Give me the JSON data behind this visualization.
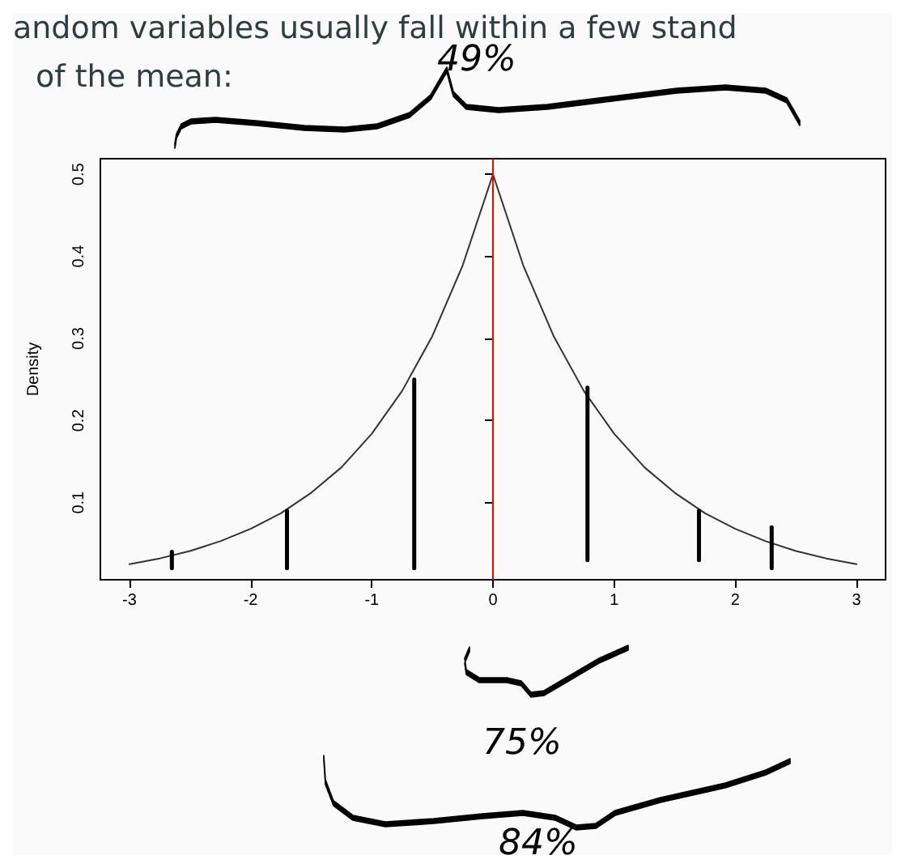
{
  "chart_data": {
    "type": "line",
    "title": "andom variables usually fall within a few stand",
    "subtitle": "of the mean:",
    "ylabel": "Density",
    "xlim": [
      -3.24,
      3.24
    ],
    "xticks": [
      -3,
      -2,
      -1,
      0,
      1,
      2,
      3
    ],
    "ylim": [
      0.006,
      0.519
    ],
    "yticks": [
      0.1,
      0.2,
      0.3,
      0.4,
      0.5
    ],
    "grid": false,
    "marker": "none",
    "line_style": "solid",
    "series": [
      {
        "color": "#333333",
        "x": [
          -3,
          -2.75,
          -2.5,
          -2.25,
          -2,
          -1.75,
          -1.5,
          -1.25,
          -1,
          -0.75,
          -0.5,
          -0.25,
          0,
          0.25,
          0.5,
          0.75,
          1,
          1.25,
          1.5,
          1.75,
          2,
          2.25,
          2.5,
          2.75,
          3
        ],
        "values": [
          0.025,
          0.032,
          0.041,
          0.053,
          0.068,
          0.087,
          0.112,
          0.143,
          0.184,
          0.236,
          0.303,
          0.389,
          0.5,
          0.389,
          0.303,
          0.236,
          0.184,
          0.143,
          0.112,
          0.087,
          0.068,
          0.053,
          0.041,
          0.032,
          0.025
        ]
      },
      {
        "color": "#000000",
        "x": [
          -2.65,
          -2.65
        ],
        "values": [
          0.02,
          0.04
        ]
      },
      {
        "color": "#000000",
        "x": [
          -1.7,
          -1.7
        ],
        "values": [
          0.02,
          0.09
        ]
      },
      {
        "color": "#000000",
        "x": [
          -0.65,
          -0.65
        ],
        "values": [
          0.02,
          0.25
        ]
      },
      {
        "color": "#000000",
        "x": [
          0.78,
          0.78
        ],
        "values": [
          0.03,
          0.24
        ]
      },
      {
        "color": "#000000",
        "x": [
          1.7,
          1.7
        ],
        "values": [
          0.03,
          0.09
        ]
      },
      {
        "color": "#000000",
        "x": [
          2.3,
          2.3
        ],
        "values": [
          0.02,
          0.07
        ]
      }
    ],
    "ref_lines": [
      {
        "axis": "x",
        "value": 0,
        "color": "#ff0000"
      }
    ],
    "annotations": [
      "49%",
      "75%",
      "84%"
    ]
  }
}
